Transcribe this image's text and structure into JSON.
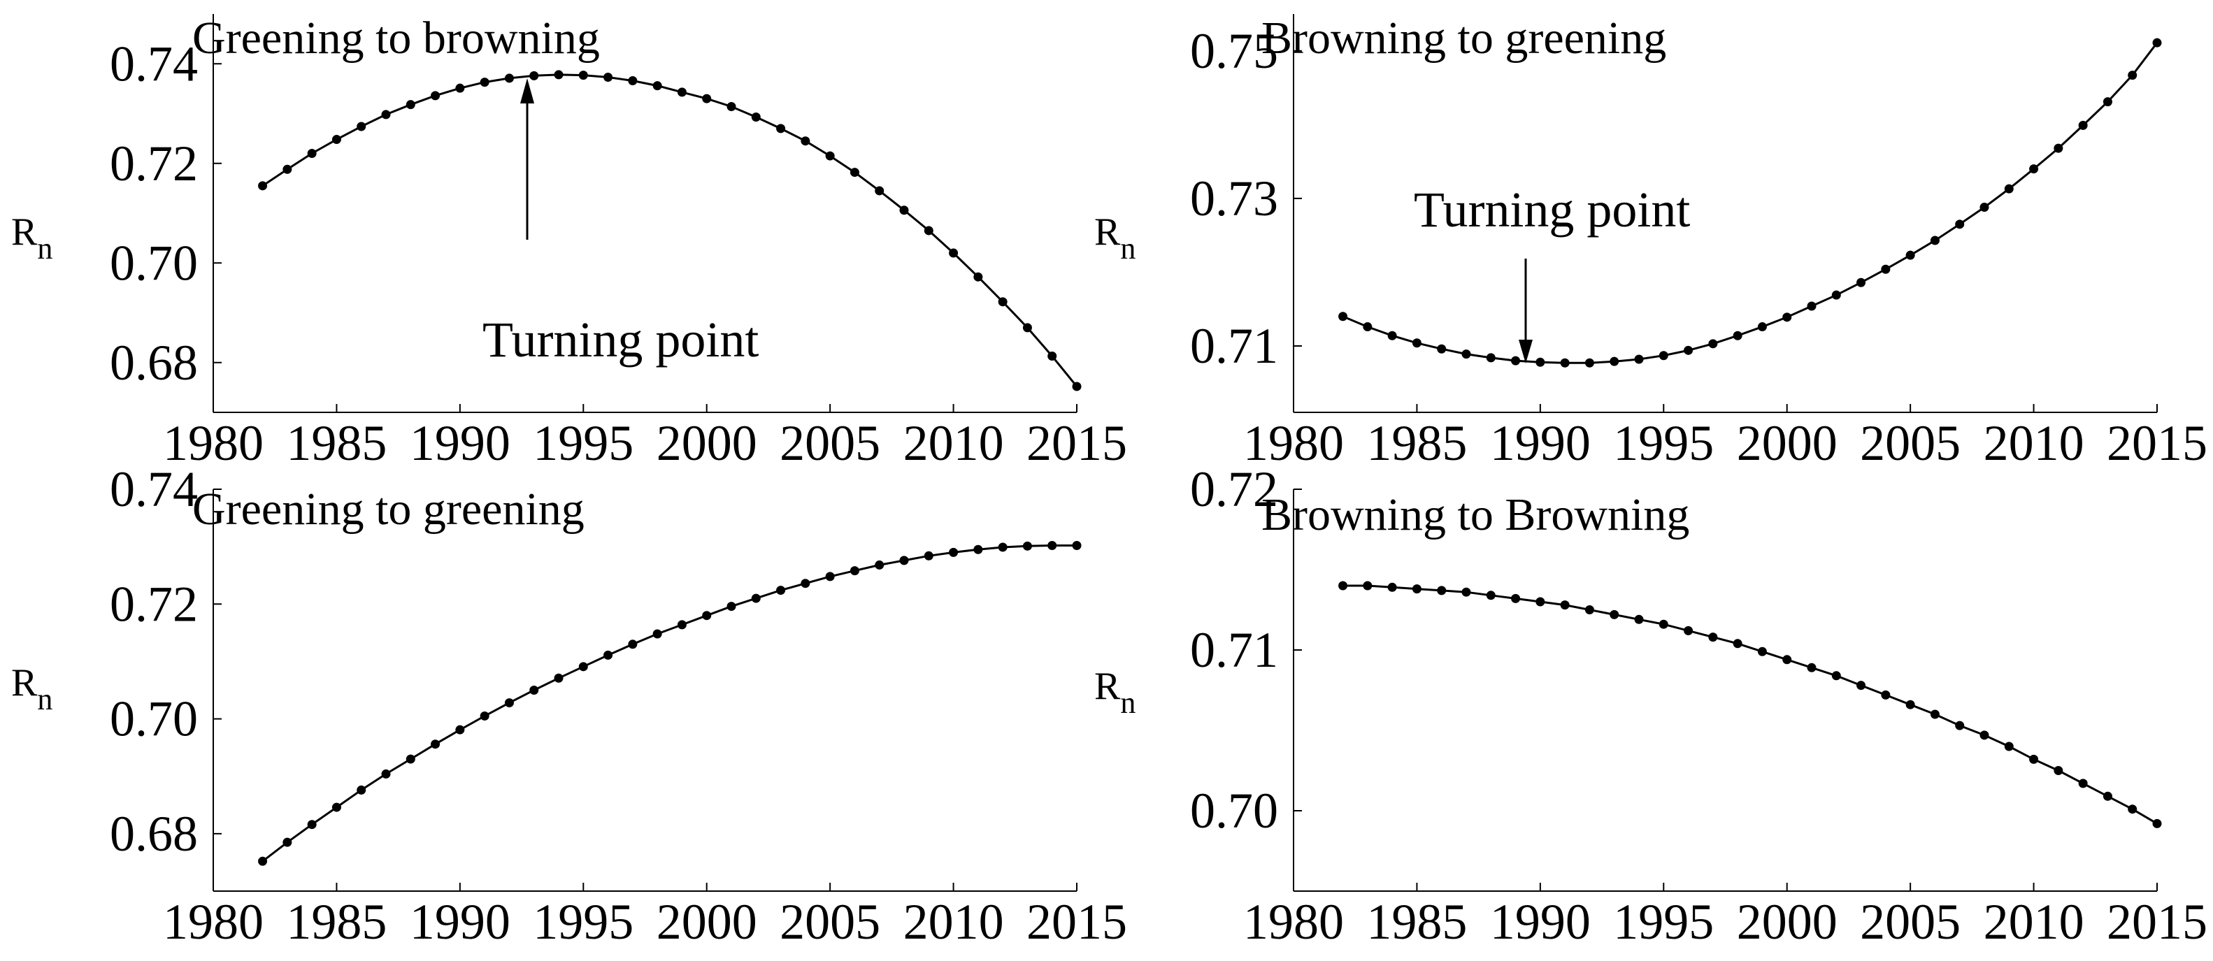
{
  "chart_data": [
    {
      "type": "line",
      "title": "Greening to browning",
      "xlabel": "",
      "ylabel": {
        "main": "R",
        "sub": "n"
      },
      "xlim": [
        1980,
        2015
      ],
      "ylim": [
        0.67,
        0.75
      ],
      "xticks": [
        "1980",
        "1985",
        "1990",
        "1995",
        "2000",
        "2005",
        "2010",
        "2015"
      ],
      "yticks": [
        "0.68",
        "0.70",
        "0.72",
        "0.74"
      ],
      "grid": false,
      "annotation": {
        "text": "Turning point",
        "x": 1994,
        "y": 0.7378
      },
      "series": [
        {
          "name": "Rn",
          "x": [
            1982,
            1983,
            1984,
            1985,
            1986,
            1987,
            1988,
            1989,
            1990,
            1991,
            1992,
            1993,
            1994,
            1995,
            1996,
            1997,
            1998,
            1999,
            2000,
            2001,
            2002,
            2003,
            2004,
            2005,
            2006,
            2007,
            2008,
            2009,
            2010,
            2011,
            2012,
            2013,
            2014,
            2015
          ],
          "values": [
            0.7155,
            0.7188,
            0.722,
            0.7248,
            0.7274,
            0.7298,
            0.7318,
            0.7336,
            0.7351,
            0.7363,
            0.7371,
            0.7376,
            0.7378,
            0.7377,
            0.7373,
            0.7366,
            0.7356,
            0.7343,
            0.733,
            0.7314,
            0.7293,
            0.727,
            0.7245,
            0.7215,
            0.7182,
            0.7145,
            0.7106,
            0.7065,
            0.702,
            0.6972,
            0.6922,
            0.687,
            0.6813,
            0.6752
          ]
        }
      ]
    },
    {
      "type": "line",
      "title": "Browning to greening",
      "xlabel": "",
      "ylabel": {
        "main": "R",
        "sub": "n"
      },
      "xlim": [
        1980,
        2015
      ],
      "ylim": [
        0.701,
        0.755
      ],
      "xticks": [
        "1980",
        "1985",
        "1990",
        "1995",
        "2000",
        "2005",
        "2010",
        "2015"
      ],
      "yticks": [
        "0.71",
        "0.73",
        "0.75"
      ],
      "grid": false,
      "annotation": {
        "text": "Turning point",
        "x": 1991,
        "y": 0.7077
      },
      "series": [
        {
          "name": "Rn",
          "x": [
            1982,
            1983,
            1984,
            1985,
            1986,
            1987,
            1988,
            1989,
            1990,
            1991,
            1992,
            1993,
            1994,
            1995,
            1996,
            1997,
            1998,
            1999,
            2000,
            2001,
            2002,
            2003,
            2004,
            2005,
            2006,
            2007,
            2008,
            2009,
            2010,
            2011,
            2012,
            2013,
            2014,
            2015
          ],
          "values": [
            0.714,
            0.7126,
            0.7114,
            0.7104,
            0.7096,
            0.7089,
            0.7084,
            0.708,
            0.7078,
            0.7077,
            0.7077,
            0.7079,
            0.7082,
            0.7087,
            0.7094,
            0.7103,
            0.7114,
            0.7126,
            0.7139,
            0.7154,
            0.7169,
            0.7186,
            0.7204,
            0.7223,
            0.7243,
            0.7265,
            0.7288,
            0.7313,
            0.734,
            0.7368,
            0.7399,
            0.7431,
            0.7467,
            0.7511
          ]
        }
      ]
    },
    {
      "type": "line",
      "title": "Greening to greening",
      "xlabel": "",
      "ylabel": {
        "main": "R",
        "sub": "n"
      },
      "xlim": [
        1980,
        2015
      ],
      "ylim": [
        0.67,
        0.74
      ],
      "xticks": [
        "1980",
        "1985",
        "1990",
        "1995",
        "2000",
        "2005",
        "2010",
        "2015"
      ],
      "yticks": [
        "0.68",
        "0.70",
        "0.72",
        "0.74"
      ],
      "grid": false,
      "series": [
        {
          "name": "Rn",
          "x": [
            1982,
            1983,
            1984,
            1985,
            1986,
            1987,
            1988,
            1989,
            1990,
            1991,
            1992,
            1993,
            1994,
            1995,
            1996,
            1997,
            1998,
            1999,
            2000,
            2001,
            2002,
            2003,
            2004,
            2005,
            2006,
            2007,
            2008,
            2009,
            2010,
            2011,
            2012,
            2013,
            2014,
            2015
          ],
          "values": [
            0.6752,
            0.6785,
            0.6816,
            0.6846,
            0.6876,
            0.6904,
            0.693,
            0.6956,
            0.6981,
            0.7005,
            0.7028,
            0.705,
            0.7071,
            0.7091,
            0.7111,
            0.713,
            0.7148,
            0.7164,
            0.718,
            0.7196,
            0.721,
            0.7224,
            0.7236,
            0.7248,
            0.7258,
            0.7268,
            0.7276,
            0.7284,
            0.729,
            0.7295,
            0.7299,
            0.7301,
            0.7302,
            0.7302
          ]
        }
      ]
    },
    {
      "type": "line",
      "title": "Browning to Browning",
      "xlabel": "",
      "ylabel": {
        "main": "R",
        "sub": "n"
      },
      "xlim": [
        1980,
        2015
      ],
      "ylim": [
        0.695,
        0.72
      ],
      "xticks": [
        "1980",
        "1985",
        "1990",
        "1995",
        "2000",
        "2005",
        "2010",
        "2015"
      ],
      "yticks": [
        "0.70",
        "0.71",
        "0.72"
      ],
      "grid": false,
      "series": [
        {
          "name": "Rn",
          "x": [
            1982,
            1983,
            1984,
            1985,
            1986,
            1987,
            1988,
            1989,
            1990,
            1991,
            1992,
            1993,
            1994,
            1995,
            1996,
            1997,
            1998,
            1999,
            2000,
            2001,
            2002,
            2003,
            2004,
            2005,
            2006,
            2007,
            2008,
            2009,
            2010,
            2011,
            2012,
            2013,
            2014,
            2015
          ],
          "values": [
            0.714,
            0.714,
            0.7139,
            0.7138,
            0.7137,
            0.7136,
            0.7134,
            0.7132,
            0.713,
            0.7128,
            0.7125,
            0.7122,
            0.7119,
            0.7116,
            0.7112,
            0.7108,
            0.7104,
            0.7099,
            0.7094,
            0.7089,
            0.7084,
            0.7078,
            0.7072,
            0.7066,
            0.706,
            0.7053,
            0.7047,
            0.704,
            0.7032,
            0.7025,
            0.7017,
            0.7009,
            0.7001,
            0.6992
          ]
        }
      ]
    }
  ]
}
